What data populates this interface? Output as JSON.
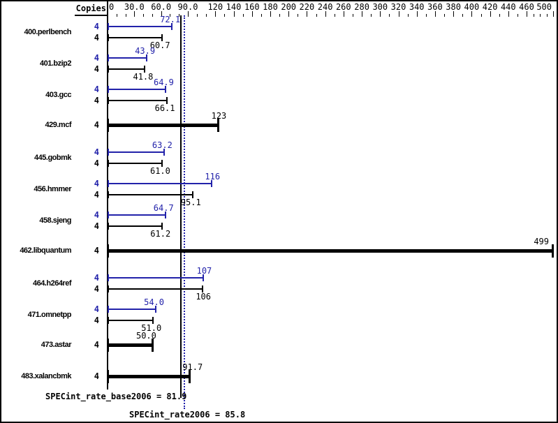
{
  "header": {
    "copies_label": "Copies"
  },
  "axis": {
    "major_ticks": [
      {
        "v": 0,
        "label": "0"
      },
      {
        "v": 30,
        "label": "30.0"
      },
      {
        "v": 60,
        "label": "60.0"
      },
      {
        "v": 90,
        "label": "90.0"
      },
      {
        "v": 120,
        "label": "120"
      },
      {
        "v": 140,
        "label": "140"
      },
      {
        "v": 160,
        "label": "160"
      },
      {
        "v": 180,
        "label": "180"
      },
      {
        "v": 200,
        "label": "200"
      },
      {
        "v": 220,
        "label": "220"
      },
      {
        "v": 240,
        "label": "240"
      },
      {
        "v": 260,
        "label": "260"
      },
      {
        "v": 280,
        "label": "280"
      },
      {
        "v": 300,
        "label": "300"
      },
      {
        "v": 320,
        "label": "320"
      },
      {
        "v": 340,
        "label": "340"
      },
      {
        "v": 360,
        "label": "360"
      },
      {
        "v": 380,
        "label": "380"
      },
      {
        "v": 400,
        "label": "400"
      },
      {
        "v": 420,
        "label": "420"
      },
      {
        "v": 440,
        "label": "440"
      },
      {
        "v": 460,
        "label": "460"
      },
      {
        "v": 500,
        "label": "500"
      }
    ],
    "minor_step": 10,
    "min": 0,
    "max": 500
  },
  "benchmarks": [
    {
      "name": "400.perlbench",
      "copies": "4",
      "peak": {
        "value": 72.1,
        "label": "72.1"
      },
      "base": {
        "value": 60.7,
        "label": "60.7"
      }
    },
    {
      "name": "401.bzip2",
      "copies": "4",
      "peak": {
        "value": 43.9,
        "label": "43.9"
      },
      "base": {
        "value": 41.8,
        "label": "41.8"
      }
    },
    {
      "name": "403.gcc",
      "copies": "4",
      "peak": {
        "value": 64.9,
        "label": "64.9"
      },
      "base": {
        "value": 66.1,
        "label": "66.1"
      }
    },
    {
      "name": "429.mcf",
      "copies": "4",
      "single": {
        "value": 123,
        "label": "123"
      }
    },
    {
      "name": "445.gobmk",
      "copies": "4",
      "peak": {
        "value": 63.2,
        "label": "63.2"
      },
      "base": {
        "value": 61.0,
        "label": "61.0"
      }
    },
    {
      "name": "456.hmmer",
      "copies": "4",
      "peak": {
        "value": 116,
        "label": "116"
      },
      "base": {
        "value": 95.1,
        "label": "95.1"
      }
    },
    {
      "name": "458.sjeng",
      "copies": "4",
      "peak": {
        "value": 64.7,
        "label": "64.7"
      },
      "base": {
        "value": 61.2,
        "label": "61.2"
      }
    },
    {
      "name": "462.libquantum",
      "copies": "4",
      "single": {
        "value": 499,
        "label": "499",
        "label_dx": -17
      }
    },
    {
      "name": "464.h264ref",
      "copies": "4",
      "peak": {
        "value": 107,
        "label": "107"
      },
      "base": {
        "value": 106,
        "label": "106"
      }
    },
    {
      "name": "471.omnetpp",
      "copies": "4",
      "peak": {
        "value": 54.0,
        "label": "54.0"
      },
      "base": {
        "value": 51.0,
        "label": "51.0"
      }
    },
    {
      "name": "473.astar",
      "copies": "4",
      "single": {
        "value": 50.0,
        "label": "50.0",
        "label_dx": -6
      }
    },
    {
      "name": "483.xalancbmk",
      "copies": "4",
      "single": {
        "value": 91.7,
        "label": "91.7",
        "label_dx": 7
      }
    }
  ],
  "medians": {
    "base": {
      "value": 81.9,
      "text": "SPECint_rate_base2006 = 81.9"
    },
    "peak": {
      "value": 85.8,
      "text": "SPECint_rate2006 = 85.8"
    }
  },
  "colors": {
    "peak_blue": "#2222aa",
    "base_black": "#000000"
  },
  "chart_data": {
    "type": "bar",
    "orientation": "horizontal",
    "title": "",
    "xlabel": "",
    "ylabel": "Copies",
    "xlim": [
      0,
      500
    ],
    "grid": false,
    "categories": [
      "400.perlbench",
      "401.bzip2",
      "403.gcc",
      "429.mcf",
      "445.gobmk",
      "456.hmmer",
      "458.sjeng",
      "462.libquantum",
      "464.h264ref",
      "471.omnetpp",
      "473.astar",
      "483.xalancbmk"
    ],
    "copies_per_benchmark": [
      4,
      4,
      4,
      4,
      4,
      4,
      4,
      4,
      4,
      4,
      4,
      4
    ],
    "series": [
      {
        "name": "SPECint_rate2006 (peak, blue)",
        "values": [
          72.1,
          43.9,
          64.9,
          123,
          63.2,
          116,
          64.7,
          499,
          107,
          54.0,
          50.0,
          91.7
        ]
      },
      {
        "name": "SPECint_rate_base2006 (base, black)",
        "values": [
          60.7,
          41.8,
          66.1,
          123,
          61.0,
          95.1,
          61.2,
          499,
          106,
          51.0,
          50.0,
          91.7
        ]
      }
    ],
    "single_bold_bars": [
      "429.mcf",
      "462.libquantum",
      "473.astar",
      "483.xalancbmk"
    ],
    "reference_lines": [
      {
        "label": "SPECint_rate_base2006 = 81.9",
        "value": 81.9,
        "style": "solid black"
      },
      {
        "label": "SPECint_rate2006 = 85.8",
        "value": 85.8,
        "style": "dotted blue"
      }
    ],
    "x_tick_labels": [
      "0",
      "30.0",
      "60.0",
      "90.0",
      "120",
      "140",
      "160",
      "180",
      "200",
      "220",
      "240",
      "260",
      "280",
      "300",
      "320",
      "340",
      "360",
      "380",
      "400",
      "420",
      "440",
      "460",
      "500"
    ]
  }
}
